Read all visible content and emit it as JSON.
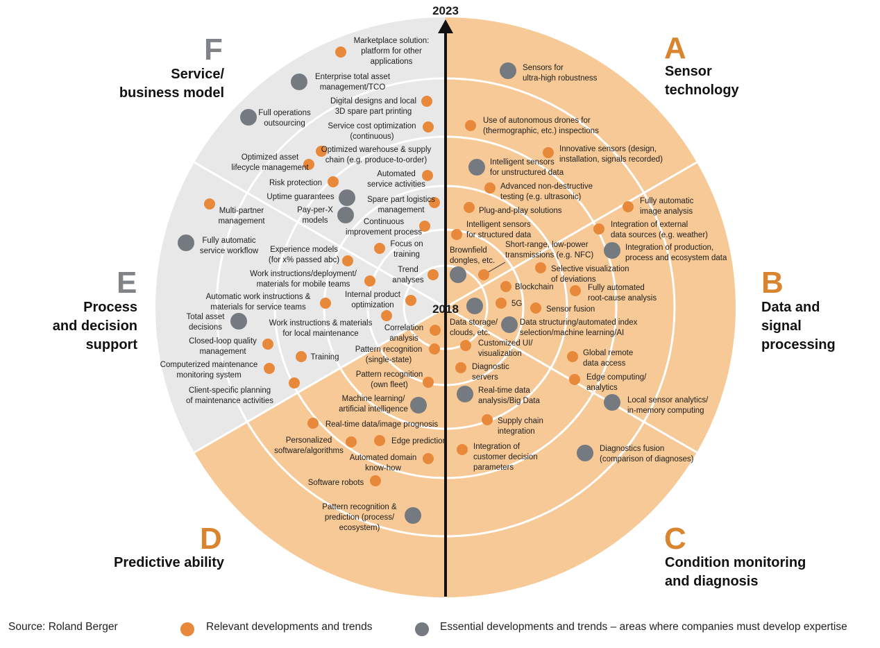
{
  "years": {
    "start": "2018",
    "end": "2023"
  },
  "colors": {
    "orange_dot": "#e8883a",
    "gray_dot": "#747a80",
    "orange_fill": "#f6c996",
    "gray_fill": "#e8e8e8",
    "letter_orange": "#d9842f",
    "letter_gray": "#808487"
  },
  "segments": [
    {
      "id": "A",
      "letter": "A",
      "title": [
        "Sensor",
        "technology"
      ],
      "color": "orange"
    },
    {
      "id": "B",
      "letter": "B",
      "title": [
        "Data and",
        "signal",
        "processing"
      ],
      "color": "orange"
    },
    {
      "id": "C",
      "letter": "C",
      "title": [
        "Condition monitoring",
        "and diagnosis"
      ],
      "color": "orange"
    },
    {
      "id": "D",
      "letter": "D",
      "title": [
        "Predictive ability"
      ],
      "color": "orange"
    },
    {
      "id": "E",
      "letter": "E",
      "title": [
        "Process",
        "and decision",
        "support"
      ],
      "color": "gray"
    },
    {
      "id": "F",
      "letter": "F",
      "title": [
        "Service/",
        "business model"
      ],
      "color": "gray"
    }
  ],
  "items": [
    {
      "type": "orange",
      "segment": "F",
      "label": [
        "Marketplace solution:",
        "platform for other",
        "applications"
      ]
    },
    {
      "type": "gray",
      "segment": "F",
      "label": [
        "Enterprise total asset",
        "management/TCO"
      ]
    },
    {
      "type": "orange",
      "segment": "F",
      "label": [
        "Digital designs and local",
        "3D spare part printing"
      ]
    },
    {
      "type": "gray",
      "segment": "F",
      "label": [
        "Full operations",
        "outsourcing"
      ]
    },
    {
      "type": "orange",
      "segment": "F",
      "label": [
        "Service cost optimization",
        "(continuous)"
      ]
    },
    {
      "type": "orange",
      "segment": "F",
      "label": [
        "Optimized warehouse & supply",
        "chain (e.g. produce-to-order)"
      ]
    },
    {
      "type": "orange",
      "segment": "F",
      "label": [
        "Optimized asset",
        "lifecycle management"
      ]
    },
    {
      "type": "orange",
      "segment": "F",
      "label": [
        "Automated",
        "service activities"
      ]
    },
    {
      "type": "orange",
      "segment": "F",
      "label": [
        "Risk protection"
      ]
    },
    {
      "type": "gray",
      "segment": "F",
      "label": [
        "Uptime guarantees"
      ]
    },
    {
      "type": "orange",
      "segment": "F",
      "label": [
        "Spare part logistics",
        "management"
      ]
    },
    {
      "type": "gray",
      "segment": "F",
      "label": [
        "Pay-per-X",
        "models"
      ]
    },
    {
      "type": "orange",
      "segment": "F",
      "label": [
        "Continuous",
        "improvement process"
      ]
    },
    {
      "type": "orange",
      "segment": "F",
      "label": [
        "Focus on",
        "training"
      ]
    },
    {
      "type": "orange",
      "segment": "E",
      "label": [
        "Multi-partner",
        "management"
      ]
    },
    {
      "type": "gray",
      "segment": "E",
      "label": [
        "Fully automatic",
        "service workflow"
      ]
    },
    {
      "type": "orange",
      "segment": "E",
      "label": [
        "Experience models",
        "(for x% passed abc)"
      ]
    },
    {
      "type": "orange",
      "segment": "E",
      "label": [
        "Trend",
        "analyses"
      ]
    },
    {
      "type": "orange",
      "segment": "E",
      "label": [
        "Work instructions/deployment/",
        "materials for mobile teams"
      ]
    },
    {
      "type": "orange",
      "segment": "E",
      "label": [
        "Automatic work instructions &",
        "materials for service teams"
      ]
    },
    {
      "type": "orange",
      "segment": "E",
      "label": [
        "Internal product",
        "optimization"
      ]
    },
    {
      "type": "gray",
      "segment": "E",
      "label": [
        "Total asset",
        "decisions"
      ]
    },
    {
      "type": "orange",
      "segment": "E",
      "label": [
        "Work instructions & materials",
        "for local maintenance"
      ]
    },
    {
      "type": "orange",
      "segment": "E",
      "label": [
        "Correlation",
        "analysis"
      ]
    },
    {
      "type": "orange",
      "segment": "E",
      "label": [
        "Closed-loop quality",
        "management"
      ]
    },
    {
      "type": "orange",
      "segment": "E",
      "label": [
        "Training"
      ]
    },
    {
      "type": "orange",
      "segment": "E",
      "label": [
        "Computerized maintenance",
        "monitoring system"
      ]
    },
    {
      "type": "orange",
      "segment": "E",
      "label": [
        "Client-specific planning",
        "of maintenance activities"
      ]
    },
    {
      "type": "orange",
      "segment": "D",
      "label": [
        "Pattern recognition",
        "(single-state)"
      ]
    },
    {
      "type": "orange",
      "segment": "D",
      "label": [
        "Pattern recognition",
        "(own fleet)"
      ]
    },
    {
      "type": "gray",
      "segment": "D",
      "label": [
        "Machine learning/",
        "artificial intelligence"
      ]
    },
    {
      "type": "orange",
      "segment": "D",
      "label": [
        "Real-time data/image prognosis"
      ]
    },
    {
      "type": "orange",
      "segment": "D",
      "label": [
        "Personalized",
        "software/algorithms"
      ]
    },
    {
      "type": "orange",
      "segment": "D",
      "label": [
        "Edge prediction"
      ]
    },
    {
      "type": "orange",
      "segment": "D",
      "label": [
        "Automated domain",
        "know-how"
      ]
    },
    {
      "type": "orange",
      "segment": "D",
      "label": [
        "Software robots"
      ]
    },
    {
      "type": "gray",
      "segment": "D",
      "label": [
        "Pattern recognition &",
        "prediction (process/",
        "ecosystem)"
      ]
    },
    {
      "type": "gray",
      "segment": "A",
      "label": [
        "Sensors for",
        "ultra-high robustness"
      ]
    },
    {
      "type": "orange",
      "segment": "A",
      "label": [
        "Use of autonomous drones for",
        "(thermographic, etc.) inspections"
      ]
    },
    {
      "type": "orange",
      "segment": "A",
      "label": [
        "Innovative sensors (design,",
        "installation, signals recorded)"
      ]
    },
    {
      "type": "gray",
      "segment": "A",
      "label": [
        "Intelligent sensors",
        "for unstructured data"
      ]
    },
    {
      "type": "orange",
      "segment": "A",
      "label": [
        "Advanced non-destructive",
        "testing (e.g. ultrasonic)"
      ]
    },
    {
      "type": "orange",
      "segment": "A",
      "label": [
        "Plug-and-play solutions"
      ]
    },
    {
      "type": "orange",
      "segment": "A",
      "label": [
        "Intelligent sensors",
        "for structured data"
      ]
    },
    {
      "type": "gray",
      "segment": "A",
      "label": [
        "Brownfield",
        "dongles, etc."
      ]
    },
    {
      "type": "orange",
      "segment": "A",
      "label": [
        "Short-range, low-power",
        "transmissions (e.g. NFC)"
      ]
    },
    {
      "type": "orange",
      "segment": "B",
      "label": [
        "Fully automatic",
        "image analysis"
      ]
    },
    {
      "type": "orange",
      "segment": "B",
      "label": [
        "Integration of external",
        "data sources (e.g. weather)"
      ]
    },
    {
      "type": "gray",
      "segment": "B",
      "label": [
        "Integration of production,",
        "process and ecosystem data"
      ]
    },
    {
      "type": "orange",
      "segment": "B",
      "label": [
        "Selective visualization",
        "of deviations"
      ]
    },
    {
      "type": "orange",
      "segment": "B",
      "label": [
        "Blockchain"
      ]
    },
    {
      "type": "orange",
      "segment": "B",
      "label": [
        "Fully automated",
        "root-cause analysis"
      ]
    },
    {
      "type": "orange",
      "segment": "B",
      "label": [
        "5G"
      ]
    },
    {
      "type": "orange",
      "segment": "B",
      "label": [
        "Sensor fusion"
      ]
    },
    {
      "type": "gray",
      "segment": "B",
      "label": [
        "Data storage/",
        "clouds, etc."
      ]
    },
    {
      "type": "gray",
      "segment": "B",
      "label": [
        "Data structuring/automated index",
        "selection/machine learning/AI"
      ]
    },
    {
      "type": "orange",
      "segment": "C",
      "label": [
        "Customized UI/",
        "visualization"
      ]
    },
    {
      "type": "orange",
      "segment": "C",
      "label": [
        "Global remote",
        "data access"
      ]
    },
    {
      "type": "orange",
      "segment": "C",
      "label": [
        "Diagnostic",
        "servers"
      ]
    },
    {
      "type": "orange",
      "segment": "C",
      "label": [
        "Edge computing/",
        "analytics"
      ]
    },
    {
      "type": "gray",
      "segment": "C",
      "label": [
        "Real-time data",
        "analysis/Big Data"
      ]
    },
    {
      "type": "gray",
      "segment": "C",
      "label": [
        "Local sensor analytics/",
        "in-memory computing"
      ]
    },
    {
      "type": "orange",
      "segment": "C",
      "label": [
        "Supply chain",
        "integration"
      ]
    },
    {
      "type": "orange",
      "segment": "C",
      "label": [
        "Integration of",
        "customer decision",
        "parameters"
      ]
    },
    {
      "type": "gray",
      "segment": "C",
      "label": [
        "Diagnostics fusion",
        "(comparison of diagnoses)"
      ]
    }
  ],
  "legend": {
    "source": "Source: Roland Berger",
    "orange_label": "Relevant developments and trends",
    "gray_label": "Essential developments and trends – areas where companies must develop expertise"
  }
}
